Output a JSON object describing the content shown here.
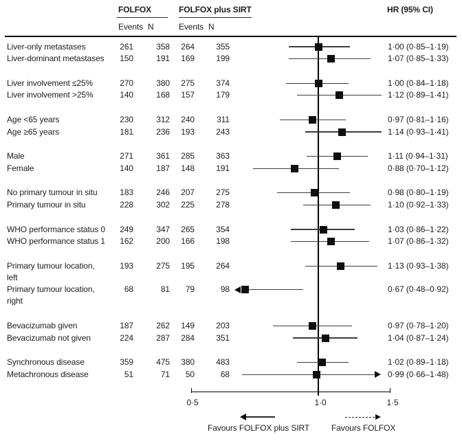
{
  "header": {
    "col1": "FOLFOX",
    "col2": "FOLFOX plus SIRT",
    "hr_col": "HR (95% CI)",
    "events": "Events",
    "n": "N"
  },
  "colors": {
    "marker": "#0f0f0f",
    "line": "#3c3c3c",
    "text": "#1c1c1c"
  },
  "chart_data": {
    "type": "forest",
    "x_scale": "log",
    "x_ticks": [
      "0·5",
      "1·0",
      "1·5"
    ],
    "x_tick_values": [
      0.5,
      1.0,
      1.5
    ],
    "x_range": [
      0.5,
      1.5
    ],
    "reference_line": 1.0,
    "favours_left": "Favours FOLFOX plus SIRT",
    "favours_right": "Favours FOLFOX",
    "groups": [
      {
        "rows": [
          {
            "label": "Liver-only metastases",
            "events_folfox": 261,
            "n_folfox": 358,
            "events_sirt": 264,
            "n_sirt": 355,
            "hr": 1.0,
            "ci_low": 0.85,
            "ci_high": 1.19,
            "hr_text": "1·00 (0·85–1·19)",
            "arrow": null
          },
          {
            "label": "Liver-dominant metastases",
            "events_folfox": 150,
            "n_folfox": 191,
            "events_sirt": 169,
            "n_sirt": 199,
            "hr": 1.07,
            "ci_low": 0.85,
            "ci_high": 1.33,
            "hr_text": "1·07 (0·85–1·33)",
            "arrow": null
          }
        ]
      },
      {
        "rows": [
          {
            "label": "Liver involvement ≤25%",
            "events_folfox": 270,
            "n_folfox": 380,
            "events_sirt": 275,
            "n_sirt": 374,
            "hr": 1.0,
            "ci_low": 0.84,
            "ci_high": 1.18,
            "hr_text": "1·00 (0·84–1·18)",
            "arrow": null
          },
          {
            "label": "Liver involvement >25%",
            "events_folfox": 140,
            "n_folfox": 168,
            "events_sirt": 157,
            "n_sirt": 179,
            "hr": 1.12,
            "ci_low": 0.89,
            "ci_high": 1.41,
            "hr_text": "1·12 (0·89–1·41)",
            "arrow": null
          }
        ]
      },
      {
        "rows": [
          {
            "label": "Age <65 years",
            "events_folfox": 230,
            "n_folfox": 312,
            "events_sirt": 240,
            "n_sirt": 311,
            "hr": 0.97,
            "ci_low": 0.81,
            "ci_high": 1.16,
            "hr_text": "0·97 (0·81–1·16)",
            "arrow": null
          },
          {
            "label": "Age ≥65 years",
            "events_folfox": 181,
            "n_folfox": 236,
            "events_sirt": 193,
            "n_sirt": 243,
            "hr": 1.14,
            "ci_low": 0.93,
            "ci_high": 1.41,
            "hr_text": "1·14 (0·93–1·41)",
            "arrow": null
          }
        ]
      },
      {
        "rows": [
          {
            "label": "Male",
            "events_folfox": 271,
            "n_folfox": 361,
            "events_sirt": 285,
            "n_sirt": 363,
            "hr": 1.11,
            "ci_low": 0.94,
            "ci_high": 1.31,
            "hr_text": "1·11 (0·94–1·31)",
            "arrow": null
          },
          {
            "label": "Female",
            "events_folfox": 140,
            "n_folfox": 187,
            "events_sirt": 148,
            "n_sirt": 191,
            "hr": 0.88,
            "ci_low": 0.7,
            "ci_high": 1.12,
            "hr_text": "0·88 (0·70–1·12)",
            "arrow": null
          }
        ]
      },
      {
        "rows": [
          {
            "label": "No primary tumour in situ",
            "events_folfox": 183,
            "n_folfox": 246,
            "events_sirt": 207,
            "n_sirt": 275,
            "hr": 0.98,
            "ci_low": 0.8,
            "ci_high": 1.19,
            "hr_text": "0·98 (0·80–1·19)",
            "arrow": null
          },
          {
            "label": "Primary tumour in situ",
            "events_folfox": 228,
            "n_folfox": 302,
            "events_sirt": 225,
            "n_sirt": 278,
            "hr": 1.1,
            "ci_low": 0.92,
            "ci_high": 1.33,
            "hr_text": "1·10 (0·92–1·33)",
            "arrow": null
          }
        ]
      },
      {
        "rows": [
          {
            "label": "WHO performance status 0",
            "events_folfox": 249,
            "n_folfox": 347,
            "events_sirt": 265,
            "n_sirt": 354,
            "hr": 1.03,
            "ci_low": 0.86,
            "ci_high": 1.22,
            "hr_text": "1·03 (0·86–1·22)",
            "arrow": null
          },
          {
            "label": "WHO performance status 1",
            "events_folfox": 162,
            "n_folfox": 200,
            "events_sirt": 166,
            "n_sirt": 198,
            "hr": 1.07,
            "ci_low": 0.86,
            "ci_high": 1.32,
            "hr_text": "1·07 (0·86–1·32)",
            "arrow": null
          }
        ]
      },
      {
        "rows": [
          {
            "label": "Primary tumour location,\nleft",
            "events_folfox": 193,
            "n_folfox": 275,
            "events_sirt": 195,
            "n_sirt": 264,
            "hr": 1.13,
            "ci_low": 0.93,
            "ci_high": 1.38,
            "hr_text": "1·13 (0·93–1·38)",
            "arrow": null
          },
          {
            "label": "Primary tumour location,\nright",
            "events_folfox": 68,
            "n_folfox": 81,
            "events_sirt": 79,
            "n_sirt": 98,
            "hr": 0.67,
            "ci_low": 0.48,
            "ci_high": 0.92,
            "hr_text": "0·67 (0·48–0·92)",
            "arrow": "left"
          }
        ]
      },
      {
        "rows": [
          {
            "label": "Bevacizumab given",
            "events_folfox": 187,
            "n_folfox": 262,
            "events_sirt": 149,
            "n_sirt": 203,
            "hr": 0.97,
            "ci_low": 0.78,
            "ci_high": 1.2,
            "hr_text": "0·97 (0·78–1·20)",
            "arrow": null
          },
          {
            "label": "Bevacizumab not given",
            "events_folfox": 224,
            "n_folfox": 287,
            "events_sirt": 284,
            "n_sirt": 351,
            "hr": 1.04,
            "ci_low": 0.87,
            "ci_high": 1.24,
            "hr_text": "1·04 (0·87–1·24)",
            "arrow": null
          }
        ]
      },
      {
        "rows": [
          {
            "label": "Synchronous disease",
            "events_folfox": 359,
            "n_folfox": 475,
            "events_sirt": 380,
            "n_sirt": 483,
            "hr": 1.02,
            "ci_low": 0.89,
            "ci_high": 1.18,
            "hr_text": "1·02 (0·89–1·18)",
            "arrow": null
          },
          {
            "label": "Metachronous disease",
            "events_folfox": 51,
            "n_folfox": 71,
            "events_sirt": 50,
            "n_sirt": 68,
            "hr": 0.99,
            "ci_low": 0.66,
            "ci_high": 1.48,
            "hr_text": "0·99 (0·66–1·48)",
            "arrow": "right"
          }
        ]
      }
    ]
  }
}
